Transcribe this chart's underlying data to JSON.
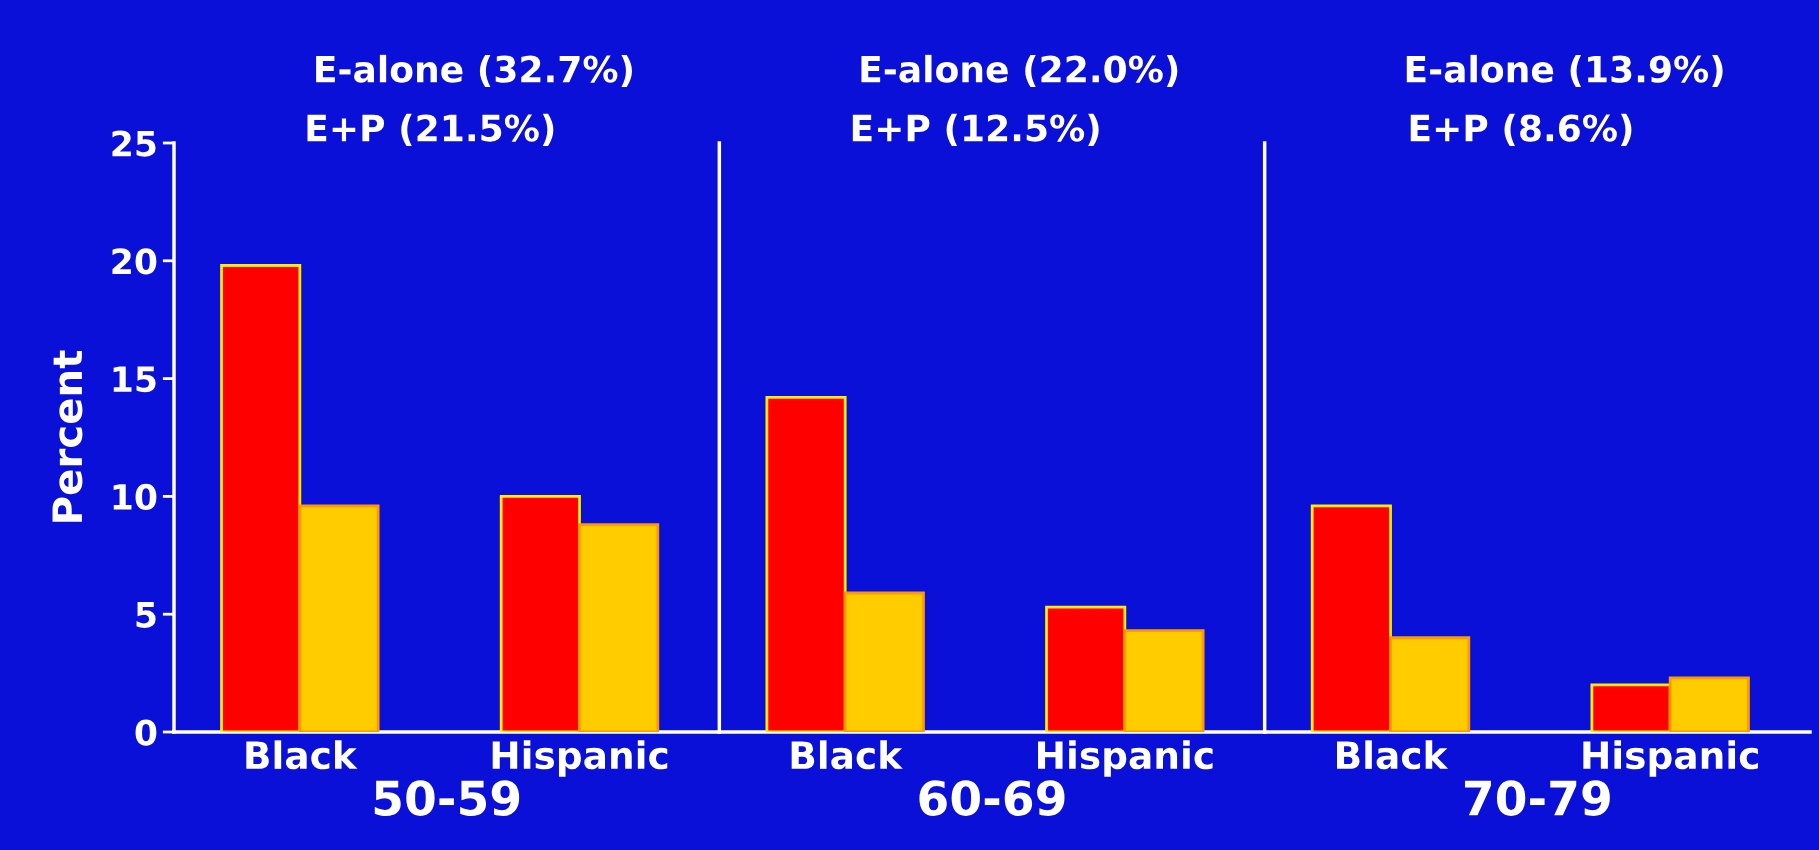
{
  "chart_data": [
    {
      "type": "bar",
      "xlabel": "50-59",
      "ylabel": "Percent",
      "categories": [
        "Black",
        "Hispanic"
      ],
      "ylim": [
        0,
        25
      ],
      "yticks": [
        0,
        5,
        10,
        15,
        20,
        25
      ],
      "series": [
        {
          "color": "#ff0000",
          "values": [
            19.8,
            10.0
          ]
        },
        {
          "color": "#ffcc00",
          "values": [
            9.6,
            8.8
          ]
        }
      ],
      "annotations": [
        "E-alone (32.7%)",
        "E+P (21.5%)"
      ]
    },
    {
      "type": "bar",
      "xlabel": "60-69",
      "categories": [
        "Black",
        "Hispanic"
      ],
      "ylim": [
        0,
        25
      ],
      "tick_labels": "x",
      "series": [
        {
          "color": "#ff0000",
          "values": [
            14.2,
            5.3
          ]
        },
        {
          "color": "#ffcc00",
          "values": [
            5.9,
            4.3
          ]
        }
      ],
      "annotations": [
        "E-alone (22.0%)",
        "E+P (12.5%)"
      ]
    },
    {
      "type": "bar",
      "xlabel": "70-79",
      "categories": [
        "Black",
        "Hispanic"
      ],
      "ylim": [
        0,
        25
      ],
      "tick_labels": "x",
      "series": [
        {
          "color": "#ff0000",
          "values": [
            9.6,
            2.0
          ]
        },
        {
          "color": "#ffcc00",
          "values": [
            4.0,
            2.3
          ]
        }
      ],
      "annotations": [
        "E-alone (13.9%)",
        "E+P (8.6%)"
      ]
    }
  ]
}
